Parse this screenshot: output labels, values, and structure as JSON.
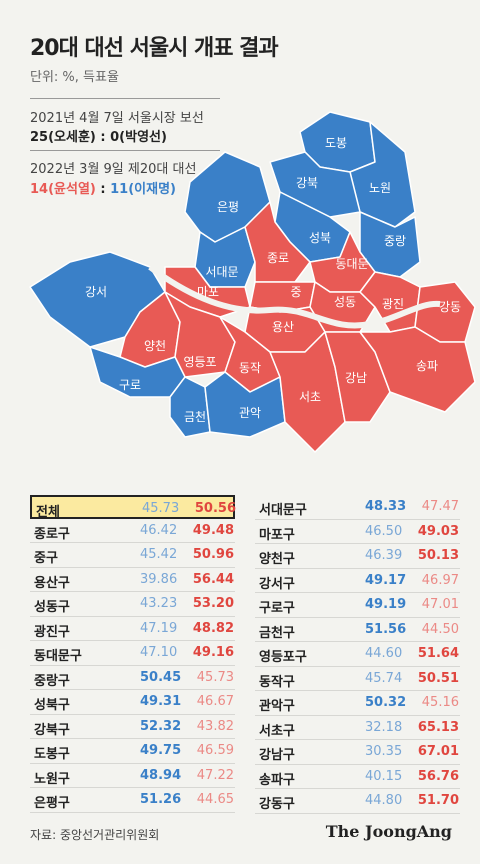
{
  "title": "20대 대선 서울시 개표 결과",
  "unit": "단위: %, 득표율",
  "election2021": {
    "label": "2021년 4월 7일 서울시장 보선",
    "result_red": "25(오세훈)",
    "result_sep": " : ",
    "result_blue": "0(박영선)"
  },
  "election2022": {
    "label": "2022년 3월 9일 제20대 대선",
    "result_red": "14(윤석열)",
    "result_sep": " : ",
    "result_blue": "11(이재명)"
  },
  "colors": {
    "red": "#e85a55",
    "blue": "#3a80c8",
    "highlight": "#fbeaa0"
  },
  "map_districts": [
    {
      "name": "도봉",
      "winner": "blue"
    },
    {
      "name": "강북",
      "winner": "blue"
    },
    {
      "name": "노원",
      "winner": "blue"
    },
    {
      "name": "은평",
      "winner": "blue"
    },
    {
      "name": "성북",
      "winner": "blue"
    },
    {
      "name": "중랑",
      "winner": "blue"
    },
    {
      "name": "종로",
      "winner": "red"
    },
    {
      "name": "동대문",
      "winner": "red"
    },
    {
      "name": "서대문",
      "winner": "blue"
    },
    {
      "name": "마포",
      "winner": "red"
    },
    {
      "name": "중",
      "winner": "red"
    },
    {
      "name": "강서",
      "winner": "blue"
    },
    {
      "name": "성동",
      "winner": "red"
    },
    {
      "name": "광진",
      "winner": "red"
    },
    {
      "name": "강동",
      "winner": "red"
    },
    {
      "name": "용산",
      "winner": "red"
    },
    {
      "name": "양천",
      "winner": "red"
    },
    {
      "name": "영등포",
      "winner": "red"
    },
    {
      "name": "동작",
      "winner": "red"
    },
    {
      "name": "구로",
      "winner": "blue"
    },
    {
      "name": "서초",
      "winner": "red"
    },
    {
      "name": "강남",
      "winner": "red"
    },
    {
      "name": "송파",
      "winner": "red"
    },
    {
      "name": "금천",
      "winner": "blue"
    },
    {
      "name": "관악",
      "winner": "blue"
    }
  ],
  "results_left": [
    {
      "name": "전체",
      "blue": "45.73",
      "red": "50.56",
      "winner": "red",
      "highlight": true
    },
    {
      "name": "종로구",
      "blue": "46.42",
      "red": "49.48",
      "winner": "red"
    },
    {
      "name": "중구",
      "blue": "45.42",
      "red": "50.96",
      "winner": "red"
    },
    {
      "name": "용산구",
      "blue": "39.86",
      "red": "56.44",
      "winner": "red"
    },
    {
      "name": "성동구",
      "blue": "43.23",
      "red": "53.20",
      "winner": "red"
    },
    {
      "name": "광진구",
      "blue": "47.19",
      "red": "48.82",
      "winner": "red"
    },
    {
      "name": "동대문구",
      "blue": "47.10",
      "red": "49.16",
      "winner": "red"
    },
    {
      "name": "중랑구",
      "blue": "50.45",
      "red": "45.73",
      "winner": "blue"
    },
    {
      "name": "성북구",
      "blue": "49.31",
      "red": "46.67",
      "winner": "blue"
    },
    {
      "name": "강북구",
      "blue": "52.32",
      "red": "43.82",
      "winner": "blue"
    },
    {
      "name": "도봉구",
      "blue": "49.75",
      "red": "46.59",
      "winner": "blue"
    },
    {
      "name": "노원구",
      "blue": "48.94",
      "red": "47.22",
      "winner": "blue"
    },
    {
      "name": "은평구",
      "blue": "51.26",
      "red": "44.65",
      "winner": "blue"
    }
  ],
  "results_right": [
    {
      "name": "서대문구",
      "blue": "48.33",
      "red": "47.47",
      "winner": "blue"
    },
    {
      "name": "마포구",
      "blue": "46.50",
      "red": "49.03",
      "winner": "red"
    },
    {
      "name": "양천구",
      "blue": "46.39",
      "red": "50.13",
      "winner": "red"
    },
    {
      "name": "강서구",
      "blue": "49.17",
      "red": "46.97",
      "winner": "blue"
    },
    {
      "name": "구로구",
      "blue": "49.19",
      "red": "47.01",
      "winner": "blue"
    },
    {
      "name": "금천구",
      "blue": "51.56",
      "red": "44.50",
      "winner": "blue"
    },
    {
      "name": "영등포구",
      "blue": "44.60",
      "red": "51.64",
      "winner": "red"
    },
    {
      "name": "동작구",
      "blue": "45.74",
      "red": "50.51",
      "winner": "red"
    },
    {
      "name": "관악구",
      "blue": "50.32",
      "red": "45.16",
      "winner": "blue"
    },
    {
      "name": "서초구",
      "blue": "32.18",
      "red": "65.13",
      "winner": "red"
    },
    {
      "name": "강남구",
      "blue": "30.35",
      "red": "67.01",
      "winner": "red"
    },
    {
      "name": "송파구",
      "blue": "40.15",
      "red": "56.76",
      "winner": "red"
    },
    {
      "name": "강동구",
      "blue": "44.80",
      "red": "51.70",
      "winner": "red"
    }
  ],
  "source": "자료: 중앙선거관리위원회",
  "logo": "The JoongAng"
}
